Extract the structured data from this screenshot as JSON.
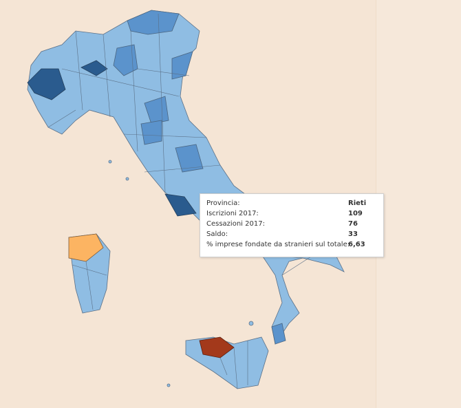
{
  "tooltip": {
    "rows": [
      {
        "label": "Provincia:",
        "value": "Rieti"
      },
      {
        "label": "Iscrizioni 2017:",
        "value": 109
      },
      {
        "label": "Cessazioni 2017:",
        "value": 76
      },
      {
        "label": "Saldo:",
        "value": 33
      },
      {
        "label": "% imprese fondate da stranieri sul totale:",
        "value": "6,63"
      }
    ]
  }
}
